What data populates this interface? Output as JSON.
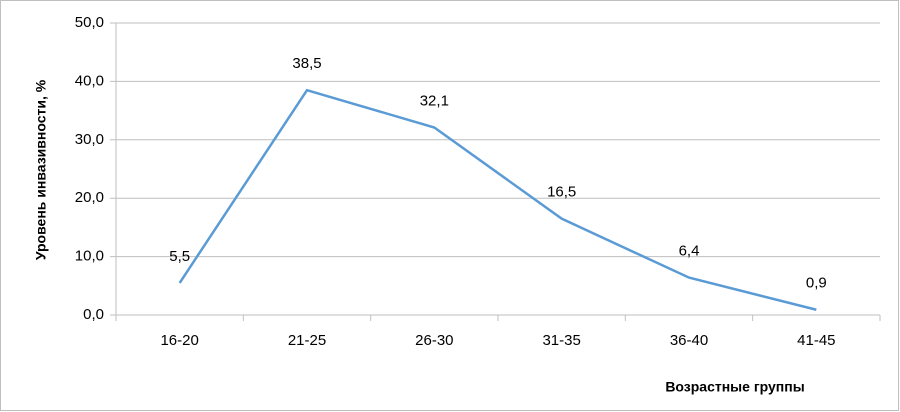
{
  "chart_data": {
    "type": "line",
    "categories": [
      "16-20",
      "21-25",
      "26-30",
      "31-35",
      "36-40",
      "41-45"
    ],
    "series": [
      {
        "name": null,
        "color": "#5b9bd5",
        "values": [
          5.5,
          38.5,
          32.1,
          16.5,
          6.4,
          0.9
        ],
        "value_labels": [
          "5,5",
          "38,5",
          "32,1",
          "16,5",
          "6,4",
          "0,9"
        ]
      }
    ],
    "ylim": [
      0,
      50
    ],
    "yticks": [
      {
        "value": 0,
        "label": "0,0"
      },
      {
        "value": 10,
        "label": "10,0"
      },
      {
        "value": 20,
        "label": "20,0"
      },
      {
        "value": 30,
        "label": "30,0"
      },
      {
        "value": 40,
        "label": "40,0"
      },
      {
        "value": 50,
        "label": "50,0"
      }
    ],
    "ylabel": "Уровень инвазивности, %",
    "xlabel": "Возрастные группы",
    "grid": true
  }
}
